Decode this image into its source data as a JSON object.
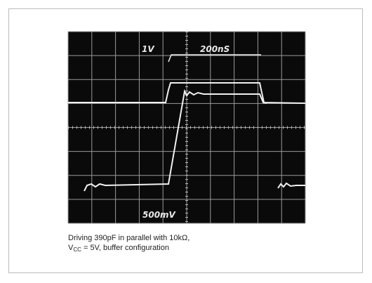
{
  "scope": {
    "labels": {
      "top_left": "1V",
      "top_right": "200nS",
      "bottom": "500mV"
    }
  },
  "caption": {
    "line1": "Driving 390pF in parallel with 10kΩ,",
    "line2_prefix": "V",
    "line2_subscript": "CC",
    "line2_rest": " = 5V, buffer configuration"
  }
}
